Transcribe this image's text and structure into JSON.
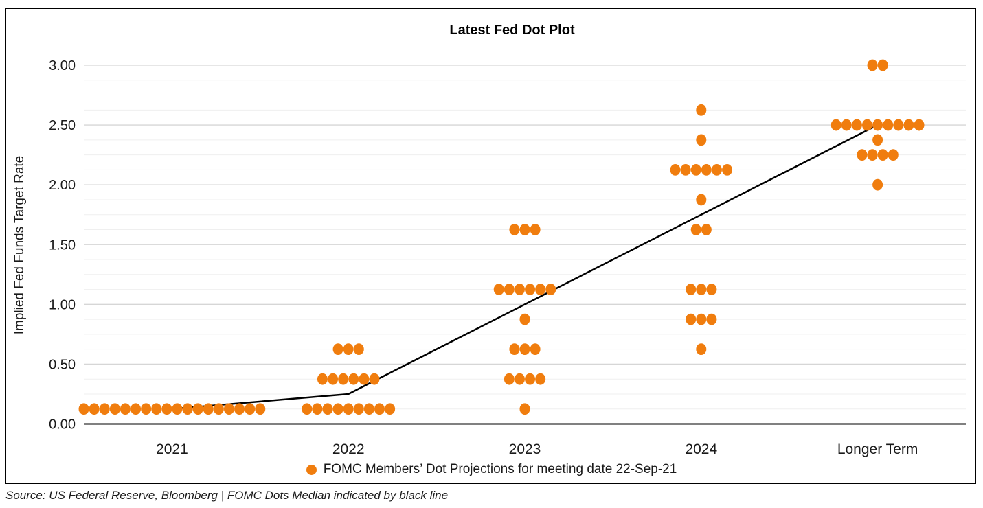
{
  "chart": {
    "title": "Latest Fed Dot Plot",
    "y_axis_label": "Implied Fed Funds Target Rate",
    "legend_label": "FOMC Members’ Dot Projections for meeting date 22-Sep-21",
    "source_note": "Source: US Federal Reserve, Bloomberg | FOMC Dots Median indicated by black line"
  },
  "chart_data": {
    "type": "scatter",
    "title": "Latest Fed Dot Plot",
    "xlabel": "",
    "ylabel": "Implied Fed Funds Target Rate",
    "ylim": [
      0,
      3
    ],
    "y_major_unit": 0.5,
    "y_minor_unit": 0.125,
    "y_tick_labels": [
      "0.00",
      "0.50",
      "1.00",
      "1.50",
      "2.00",
      "2.50",
      "3.00"
    ],
    "grid": "horizontal major and minor gridlines on",
    "legend_position": "bottom",
    "categories": [
      "2021",
      "2022",
      "2023",
      "2024",
      "Longer Term"
    ],
    "dot_series_name": "FOMC Members’ Dot Projections for meeting date 22-Sep-21",
    "dots": [
      {
        "category": "2021",
        "distribution": [
          {
            "rate": 0.125,
            "count": 18
          }
        ]
      },
      {
        "category": "2022",
        "distribution": [
          {
            "rate": 0.125,
            "count": 9
          },
          {
            "rate": 0.375,
            "count": 6
          },
          {
            "rate": 0.625,
            "count": 3
          }
        ]
      },
      {
        "category": "2023",
        "distribution": [
          {
            "rate": 0.125,
            "count": 1
          },
          {
            "rate": 0.375,
            "count": 4
          },
          {
            "rate": 0.625,
            "count": 3
          },
          {
            "rate": 0.875,
            "count": 1
          },
          {
            "rate": 1.125,
            "count": 6
          },
          {
            "rate": 1.625,
            "count": 3
          }
        ]
      },
      {
        "category": "2024",
        "distribution": [
          {
            "rate": 0.625,
            "count": 1
          },
          {
            "rate": 0.875,
            "count": 3
          },
          {
            "rate": 1.125,
            "count": 3
          },
          {
            "rate": 1.625,
            "count": 2
          },
          {
            "rate": 1.875,
            "count": 1
          },
          {
            "rate": 2.125,
            "count": 6
          },
          {
            "rate": 2.375,
            "count": 1
          },
          {
            "rate": 2.625,
            "count": 1
          }
        ]
      },
      {
        "category": "Longer Term",
        "distribution": [
          {
            "rate": 2.0,
            "count": 1
          },
          {
            "rate": 2.25,
            "count": 4
          },
          {
            "rate": 2.375,
            "count": 1
          },
          {
            "rate": 2.5,
            "count": 9
          },
          {
            "rate": 3.0,
            "count": 2
          }
        ]
      }
    ],
    "median_series": {
      "name": "FOMC Dots Median (black line)",
      "values": [
        0.125,
        0.25,
        1.0,
        1.75,
        2.5
      ]
    },
    "colors": {
      "dot": "#F07D0E",
      "median_line": "#000000",
      "major_gridline": "#D6D6D6",
      "minor_gridline": "#EFEFEF",
      "axis_line": "#000000",
      "text": "#1a1a1a"
    }
  }
}
